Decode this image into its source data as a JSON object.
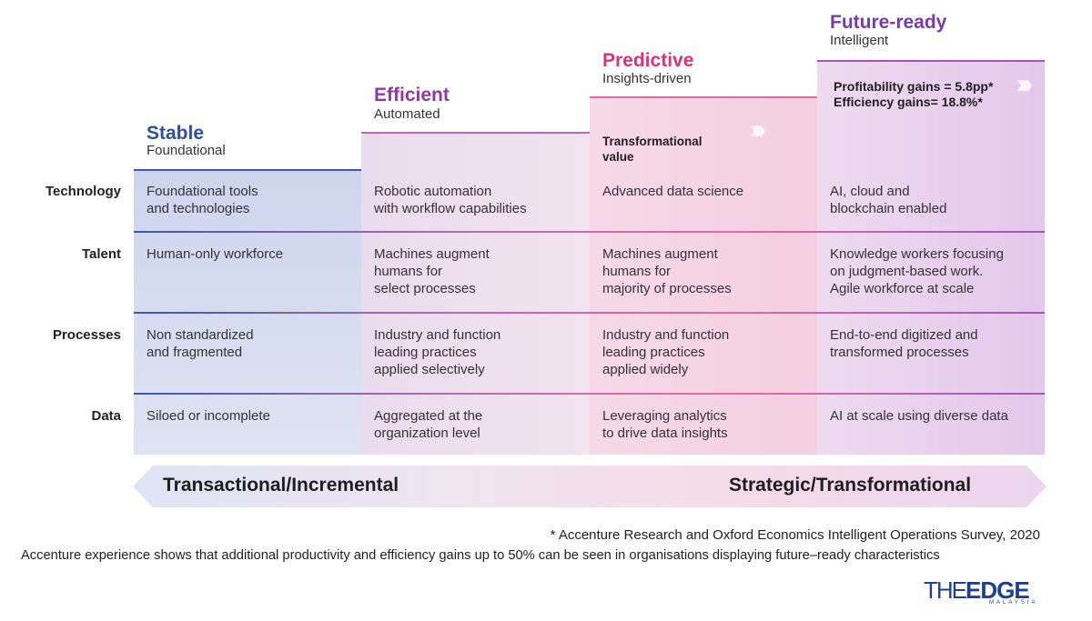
{
  "stages": [
    {
      "title": "Stable",
      "subtitle": "Foundational",
      "color": "#2f4ea0"
    },
    {
      "title": "Efficient",
      "subtitle": "Automated",
      "color": "#8e3ba0"
    },
    {
      "title": "Predictive",
      "subtitle": "Insights-driven",
      "color": "#d6347d"
    },
    {
      "title": "Future-ready",
      "subtitle": "Intelligent",
      "color": "#7a3aa8"
    }
  ],
  "rows": [
    {
      "label": "Technology",
      "cells": [
        "Foundational tools\nand technologies",
        "Robotic automation\nwith workflow capabilities",
        "Advanced data science",
        "AI, cloud and\nblockchain enabled"
      ]
    },
    {
      "label": "Talent",
      "cells": [
        "Human-only workforce",
        "Machines augment\nhumans for\nselect processes",
        "Machines augment\nhumans for\nmajority of processes",
        "Knowledge workers focusing\non judgment-based work.\nAgile workforce at scale"
      ]
    },
    {
      "label": "Processes",
      "cells": [
        "Non standardized\nand fragmented",
        "Industry and function\nleading practices\napplied selectively",
        "Industry and function\nleading practices\napplied widely",
        "End-to-end digitized and\ntransformed processes"
      ]
    },
    {
      "label": "Data",
      "cells": [
        "Siloed or incomplete",
        "Aggregated at the\norganization level",
        "Leveraging analytics\nto drive data insights",
        "AI at scale using diverse data"
      ]
    }
  ],
  "transformational_value": "Transformational\nvalue",
  "gains": "Profitability gains = 5.8pp*\nEfficiency gains= 18.8%*",
  "arrow": {
    "left": "Transactional/Incremental",
    "right": "Strategic/Transformational"
  },
  "footnotes": [
    "* Accenture Research and Oxford Economics Intelligent Operations Survey, 2020",
    "Accenture experience shows that additional productivity and efficiency gains up to 50% can be seen in organisations displaying future–ready characteristics"
  ],
  "logo": {
    "part1": "THE",
    "part2": "EDGE",
    "sub": "MALAYSIA"
  },
  "icons": {
    "chevrons": "triple-chevron-right-icon"
  }
}
